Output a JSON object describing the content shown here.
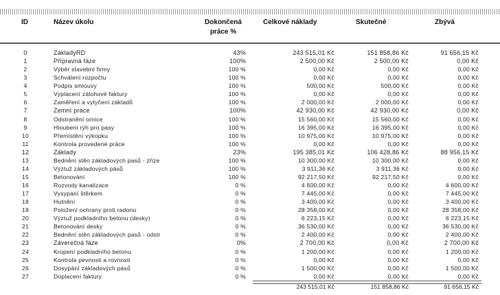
{
  "header": {
    "id": "ID",
    "name": "Název úkolu",
    "pct_line1": "Dokončená",
    "pct_line2": "práce %",
    "total": "Celkové náklady",
    "actual": "Skutečné",
    "remaining": "Zbývá"
  },
  "rows": [
    {
      "id": "0",
      "name": "ZákladyRD",
      "pct": "43%",
      "total": "243 515,01 Kč",
      "actual": "151 858,86 Kč",
      "remaining": "91 656,15 Kč",
      "phase": true
    },
    {
      "id": "1",
      "name": "Přípravná fáze",
      "pct": "100%",
      "total": "2 500,00 Kč",
      "actual": "2 500,00 Kč",
      "remaining": "0,00 Kč",
      "phase": true
    },
    {
      "id": "2",
      "name": "Výběr stavební firmy",
      "pct": "100 %",
      "total": "0,00 Kč",
      "actual": "0,00 Kč",
      "remaining": "0,00 Kč"
    },
    {
      "id": "3",
      "name": "Schválení rozpočtu",
      "pct": "100 %",
      "total": "0,00 Kč",
      "actual": "0,00 Kč",
      "remaining": "0,00 Kč"
    },
    {
      "id": "4",
      "name": "Podpis smlouvy",
      "pct": "100 %",
      "total": "500,00 Kč",
      "actual": "500,00 Kč",
      "remaining": "0,00 Kč"
    },
    {
      "id": "5",
      "name": "Vyplacení zálohové faktury",
      "pct": "100 %",
      "total": "0,00 Kč",
      "actual": "0,00 Kč",
      "remaining": "0,00 Kč"
    },
    {
      "id": "6",
      "name": "Zaměření a vytyčení základů",
      "pct": "100 %",
      "total": "2 000,00 Kč",
      "actual": "2 000,00 Kč",
      "remaining": "0,00 Kč"
    },
    {
      "id": "7",
      "name": "Zemní práce",
      "pct": "100%",
      "total": "42 930,00 Kč",
      "actual": "42 930,00 Kč",
      "remaining": "0,00 Kč",
      "phase": true
    },
    {
      "id": "8",
      "name": "Odstranění ornice",
      "pct": "100 %",
      "total": "15 560,00 Kč",
      "actual": "15 560,00 Kč",
      "remaining": "0,00 Kč"
    },
    {
      "id": "9",
      "name": "Hloubení rýh pro pasy",
      "pct": "100 %",
      "total": "16 395,00 Kč",
      "actual": "16 395,00 Kč",
      "remaining": "0,00 Kč"
    },
    {
      "id": "10",
      "name": "Přemístění výkopku",
      "pct": "100 %",
      "total": "10 975,00 Kč",
      "actual": "10 975,00 Kč",
      "remaining": "0,00 Kč"
    },
    {
      "id": "11",
      "name": "Kontrola provedené práce",
      "pct": "100 %",
      "total": "0,00 Kč",
      "actual": "0,00 Kč",
      "remaining": "0,00 Kč"
    },
    {
      "id": "12",
      "name": "Základy",
      "pct": "23%",
      "total": "195 385,01 Kč",
      "actual": "106 428,86 Kč",
      "remaining": "88 956,15 Kč",
      "phase": true
    },
    {
      "id": "13",
      "name": "Bednění stěn základových pasů - zřize",
      "pct": "100 %",
      "total": "10 300,00 Kč",
      "actual": "10 300,00 Kč",
      "remaining": "0,00 Kč"
    },
    {
      "id": "14",
      "name": "Výztuž základových pásů",
      "pct": "100 %",
      "total": "3 911,36 Kč",
      "actual": "3 911,36 Kč",
      "remaining": "0,00 Kč"
    },
    {
      "id": "15",
      "name": "Betonování",
      "pct": "100 %",
      "total": "92 217,50 Kč",
      "actual": "92 217,50 Kč",
      "remaining": "0,00 Kč"
    },
    {
      "id": "16",
      "name": "Rozvody kanalizace",
      "pct": "0 %",
      "total": "4 600,00 Kč",
      "actual": "0,00 Kč",
      "remaining": "4 600,00 Kč"
    },
    {
      "id": "17",
      "name": "Vysypaní štěrkem",
      "pct": "0 %",
      "total": "7 445,00 Kč",
      "actual": "0,00 Kč",
      "remaining": "7 445,00 Kč"
    },
    {
      "id": "18",
      "name": "Hutnění",
      "pct": "0 %",
      "total": "3 400,00 Kč",
      "actual": "0,00 Kč",
      "remaining": "3 400,00 Kč"
    },
    {
      "id": "19",
      "name": "Položení ochrany proti radonu",
      "pct": "0 %",
      "total": "28 358,00 Kč",
      "actual": "0,00 Kč",
      "remaining": "28 358,00 Kč"
    },
    {
      "id": "20",
      "name": "Výztuž podkladního betonu (desky)",
      "pct": "0 %",
      "total": "6 223,15 Kč",
      "actual": "0,00 Kč",
      "remaining": "6 223,15 Kč"
    },
    {
      "id": "21",
      "name": "Betonování desky",
      "pct": "0 %",
      "total": "36 530,00 Kč",
      "actual": "0,00 Kč",
      "remaining": "36 530,00 Kč"
    },
    {
      "id": "22",
      "name": "Bednění stěn základových pasů - odstr",
      "pct": "0 %",
      "total": "2 400,00 Kč",
      "actual": "0,00 Kč",
      "remaining": "2 400,00 Kč"
    },
    {
      "id": "23",
      "name": "Záverečná fáze",
      "pct": "0%",
      "total": "2 700,00 Kč",
      "actual": "0,00 Kč",
      "remaining": "2 700,00 Kč",
      "phase": true
    },
    {
      "id": "24",
      "name": "Kropení podkladního betonu",
      "pct": "0 %",
      "total": "1 200,00 Kč",
      "actual": "0,00 Kč",
      "remaining": "1 200,00 Kč"
    },
    {
      "id": "25",
      "name": "Kontrola pevnosti a rovnosti",
      "pct": "0 %",
      "total": "0,00 Kč",
      "actual": "0,00 Kč",
      "remaining": "0,00 Kč"
    },
    {
      "id": "26",
      "name": "Dosypání základových pásů",
      "pct": "0 %",
      "total": "1 500,00 Kč",
      "actual": "0,00 Kč",
      "remaining": "1 500,00 Kč"
    },
    {
      "id": "27",
      "name": "Doplacení faktury",
      "pct": "0 %",
      "total": "0,00 Kč",
      "actual": "0,00 Kč",
      "remaining": "0,00 Kč"
    }
  ],
  "totals": {
    "total": "243 515,01 Kč",
    "actual": "151 858,86 Kč",
    "remaining": "91 656,15 Kč"
  }
}
